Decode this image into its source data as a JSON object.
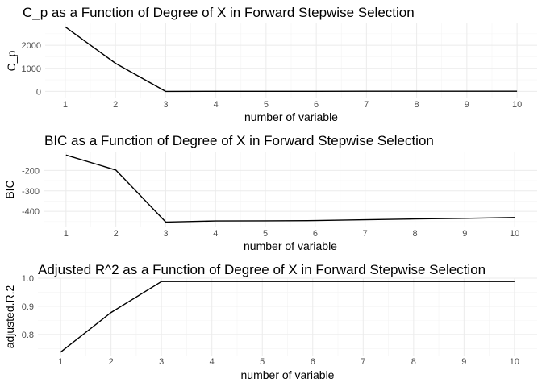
{
  "chart_data": [
    {
      "type": "line",
      "title": "C_p as a Function of Degree of X in Forward Stepwise Selection",
      "xlabel": "number of variable",
      "ylabel": "C_p",
      "x": [
        1,
        2,
        3,
        4,
        5,
        6,
        7,
        8,
        9,
        10
      ],
      "y": [
        2800,
        1220,
        2,
        3,
        4,
        5,
        6,
        7,
        8,
        9
      ],
      "xlim": [
        0.6,
        10.4
      ],
      "ylim": [
        -300,
        2950
      ],
      "xticks": [
        1,
        2,
        3,
        4,
        5,
        6,
        7,
        8,
        9,
        10
      ],
      "yticks": [
        0,
        1000,
        2000
      ],
      "grid": true,
      "line_color": "#000000"
    },
    {
      "type": "line",
      "title": "BIC as a Function of Degree of X in Forward Stepwise Selection",
      "xlabel": "number of variable",
      "ylabel": "BIC",
      "x": [
        1,
        2,
        3,
        4,
        5,
        6,
        7,
        8,
        9,
        10
      ],
      "y": [
        -125,
        -198,
        -452,
        -447,
        -446,
        -445,
        -441,
        -437,
        -434,
        -430
      ],
      "xlim": [
        0.55,
        10.45
      ],
      "ylim": [
        -478,
        -108
      ],
      "xticks": [
        1,
        2,
        3,
        4,
        5,
        6,
        7,
        8,
        9,
        10
      ],
      "yticks": [
        -400,
        -300,
        -200
      ],
      "grid": true,
      "line_color": "#000000"
    },
    {
      "type": "line",
      "title": "Adjusted R^2 as a Function of Degree of X in Forward Stepwise Selection",
      "xlabel": "number of variable",
      "ylabel": "adjusted.R.2",
      "x": [
        1,
        2,
        3,
        4,
        5,
        6,
        7,
        8,
        9,
        10
      ],
      "y": [
        0.737,
        0.878,
        0.988,
        0.988,
        0.988,
        0.988,
        0.988,
        0.988,
        0.988,
        0.988
      ],
      "xlim": [
        0.55,
        10.45
      ],
      "ylim": [
        0.725,
        1.0
      ],
      "xticks": [
        1,
        2,
        3,
        4,
        5,
        6,
        7,
        8,
        9,
        10
      ],
      "yticks": [
        0.8,
        0.9,
        1.0
      ],
      "ytick_labels": [
        "0.8",
        "0.9",
        "1.0"
      ],
      "grid": true,
      "line_color": "#000000"
    }
  ]
}
